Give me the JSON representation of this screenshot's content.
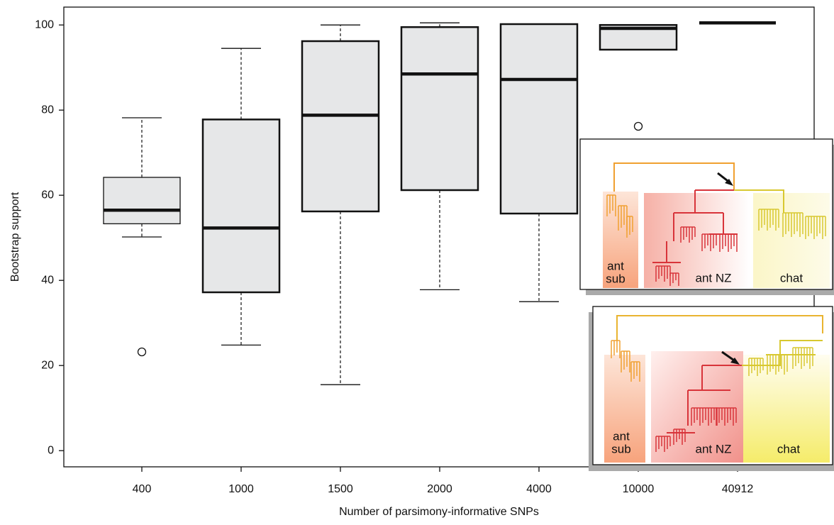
{
  "chart_data": {
    "type": "boxplot",
    "y_label": "Bootstrap support",
    "x_label": "Number of parsimony-informative SNPs",
    "categories": [
      "400",
      "1000",
      "1500",
      "2000",
      "4000",
      "10000",
      "40912"
    ],
    "boxes": [
      {
        "whisker_low": 50.2,
        "q1": 53.3,
        "median": 56.5,
        "q3": 64.2,
        "whisker_high": 78.2,
        "outliers": [
          23.2
        ]
      },
      {
        "whisker_low": 24.8,
        "q1": 37.2,
        "median": 52.3,
        "q3": 77.8,
        "whisker_high": 94.5,
        "outliers": []
      },
      {
        "whisker_low": 15.5,
        "q1": 56.2,
        "median": 78.8,
        "q3": 96.2,
        "whisker_high": 100,
        "outliers": []
      },
      {
        "whisker_low": 37.8,
        "q1": 61.2,
        "median": 88.5,
        "q3": 99.5,
        "whisker_high": 100.5,
        "outliers": []
      },
      {
        "whisker_low": 35,
        "q1": 55.7,
        "median": 87.2,
        "q3": 100.2,
        "outliers": []
      },
      {
        "q1": 94.2,
        "median": 99.2,
        "q3": 100,
        "outliers": [
          76.2
        ]
      },
      {
        "median": 100.5,
        "outliers": []
      }
    ],
    "box_color": "#e6e7e8",
    "ylim": [
      -3.8,
      104.2
    ],
    "yticks": [
      0,
      20,
      40,
      60,
      80,
      100
    ]
  },
  "insets": [
    {
      "groups": [
        [
          "ant",
          "sub"
        ],
        [
          "ant NZ"
        ],
        [
          "chat"
        ]
      ]
    },
    {
      "groups": [
        [
          "ant",
          "sub"
        ],
        [
          "ant NZ"
        ],
        [
          "chat"
        ]
      ]
    }
  ]
}
